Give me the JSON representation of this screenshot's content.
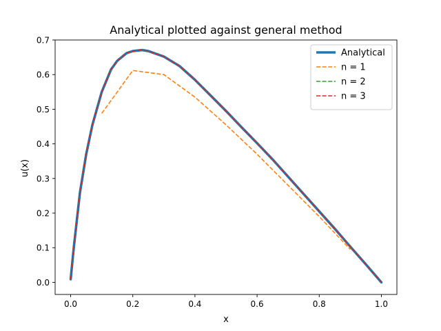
{
  "chart_data": {
    "type": "line",
    "title": "Analytical plotted against general method",
    "xlabel": "x",
    "ylabel": "u(x)",
    "xlim": [
      -0.05,
      1.05
    ],
    "ylim": [
      -0.035,
      0.7
    ],
    "xticks": [
      0.0,
      0.2,
      0.4,
      0.6,
      0.8,
      1.0
    ],
    "xtick_labels": [
      "0.0",
      "0.2",
      "0.4",
      "0.6",
      "0.8",
      "1.0"
    ],
    "yticks": [
      0.0,
      0.1,
      0.2,
      0.3,
      0.4,
      0.5,
      0.6,
      0.7
    ],
    "ytick_labels": [
      "0.0",
      "0.1",
      "0.2",
      "0.3",
      "0.4",
      "0.5",
      "0.6",
      "0.7"
    ],
    "grid": false,
    "legend_position": "top-right",
    "series": [
      {
        "name": "Analytical",
        "color": "#1f77b4",
        "style": "solid",
        "x": [
          0.0,
          0.01,
          0.02,
          0.03,
          0.05,
          0.07,
          0.1,
          0.13,
          0.15,
          0.18,
          0.2,
          0.23,
          0.25,
          0.3,
          0.35,
          0.4,
          0.45,
          0.5,
          0.55,
          0.6,
          0.65,
          0.7,
          0.75,
          0.8,
          0.85,
          0.9,
          0.95,
          1.0
        ],
        "y": [
          0.009,
          0.1,
          0.18,
          0.26,
          0.37,
          0.455,
          0.55,
          0.615,
          0.64,
          0.662,
          0.668,
          0.671,
          0.668,
          0.652,
          0.625,
          0.585,
          0.54,
          0.495,
          0.448,
          0.402,
          0.355,
          0.305,
          0.255,
          0.205,
          0.155,
          0.103,
          0.052,
          0.0
        ]
      },
      {
        "name": "n = 1",
        "color": "#ff7f0e",
        "style": "dashed",
        "x": [
          0.1,
          0.2,
          0.3,
          0.4,
          0.5,
          0.6,
          0.7,
          0.8,
          0.9
        ],
        "y": [
          0.488,
          0.612,
          0.6,
          0.535,
          0.455,
          0.37,
          0.28,
          0.19,
          0.095
        ]
      },
      {
        "name": "n = 2",
        "color": "#2ca02c",
        "style": "dashed",
        "x": [
          0.0,
          0.01,
          0.02,
          0.03,
          0.05,
          0.07,
          0.1,
          0.13,
          0.15,
          0.18,
          0.2,
          0.23,
          0.25,
          0.3,
          0.35,
          0.4,
          0.45,
          0.5,
          0.55,
          0.6,
          0.65,
          0.7,
          0.75,
          0.8,
          0.85,
          0.9,
          0.95,
          1.0
        ],
        "y": [
          0.009,
          0.1,
          0.18,
          0.26,
          0.37,
          0.455,
          0.55,
          0.615,
          0.64,
          0.662,
          0.668,
          0.671,
          0.668,
          0.652,
          0.625,
          0.585,
          0.54,
          0.495,
          0.448,
          0.402,
          0.355,
          0.305,
          0.255,
          0.205,
          0.155,
          0.103,
          0.052,
          0.0
        ]
      },
      {
        "name": "n = 3",
        "color": "#d62728",
        "style": "dashed",
        "x": [
          0.0,
          0.01,
          0.02,
          0.03,
          0.05,
          0.07,
          0.1,
          0.13,
          0.15,
          0.18,
          0.2,
          0.23,
          0.25,
          0.3,
          0.35,
          0.4,
          0.45,
          0.5,
          0.55,
          0.6,
          0.65,
          0.7,
          0.75,
          0.8,
          0.85,
          0.9,
          0.95,
          1.0
        ],
        "y": [
          0.009,
          0.1,
          0.18,
          0.26,
          0.37,
          0.455,
          0.55,
          0.615,
          0.64,
          0.662,
          0.668,
          0.671,
          0.668,
          0.652,
          0.625,
          0.585,
          0.54,
          0.495,
          0.448,
          0.402,
          0.355,
          0.305,
          0.255,
          0.205,
          0.155,
          0.103,
          0.052,
          0.0
        ]
      }
    ]
  }
}
